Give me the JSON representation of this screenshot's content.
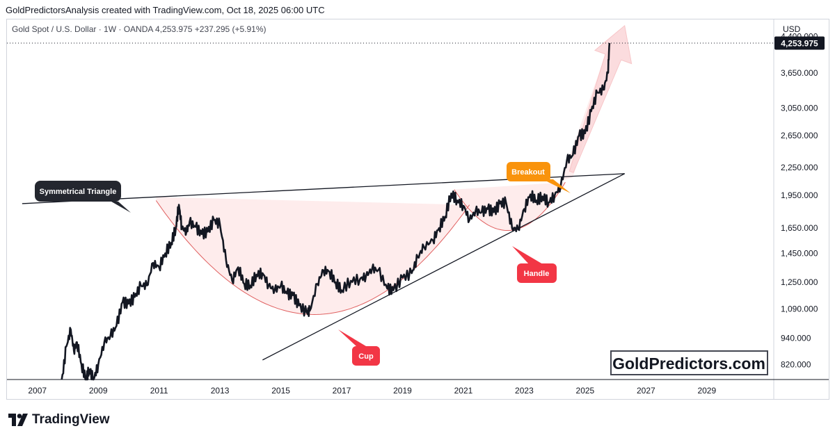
{
  "header": {
    "author_line": "GoldPredictorsAnalysis created with TradingView.com, Oct 18, 2025 06:00 UTC"
  },
  "footer": {
    "brand": "TradingView"
  },
  "colors": {
    "price_line": "#131722",
    "cup_curve": "#e06060",
    "fill_pink": "#fde5e5",
    "label_dark": "#24272f",
    "label_red": "#f23645",
    "label_orange": "#f9930c",
    "arrow_pink": "#fbd4d6"
  },
  "chart_data": {
    "type": "line",
    "title": "Gold Spot / U.S. Dollar · 1W · OANDA",
    "instrument_line": "Gold Spot / U.S. Dollar · 1W · OANDA  4,253.975  +237.295 (+5.91%)",
    "currency": "USD",
    "scale": "log",
    "last_price_label": "4,253.975",
    "x_ticks": [
      "2007",
      "2009",
      "2011",
      "2013",
      "2015",
      "2017",
      "2019",
      "2021",
      "2023",
      "2025",
      "2027",
      "2029"
    ],
    "y_ticks": [
      "4,400.000",
      "3,650.000",
      "3,050.000",
      "2,650.000",
      "2,250.000",
      "1,950.000",
      "1,650.000",
      "1,450.000",
      "1,250.000",
      "1,090.000",
      "940.000",
      "820.000"
    ],
    "xlim": [
      2006.0,
      2031.2
    ],
    "ylim": [
      760,
      4800
    ],
    "series": [
      {
        "name": "Gold Spot / U.S. Dollar (weekly)",
        "x": [
          2007.8,
          2007.95,
          2008.1,
          2008.2,
          2008.3,
          2008.45,
          2008.6,
          2008.7,
          2008.85,
          2009.0,
          2009.2,
          2009.4,
          2009.6,
          2009.8,
          2010.0,
          2010.2,
          2010.4,
          2010.6,
          2010.8,
          2011.0,
          2011.2,
          2011.4,
          2011.55,
          2011.65,
          2011.75,
          2011.9,
          2012.0,
          2012.2,
          2012.4,
          2012.6,
          2012.8,
          2013.0,
          2013.2,
          2013.4,
          2013.6,
          2013.8,
          2014.0,
          2014.2,
          2014.4,
          2014.6,
          2014.8,
          2015.0,
          2015.2,
          2015.4,
          2015.6,
          2015.85,
          2015.95,
          2016.2,
          2016.4,
          2016.6,
          2016.8,
          2017.0,
          2017.3,
          2017.6,
          2017.8,
          2018.0,
          2018.2,
          2018.5,
          2018.7,
          2019.0,
          2019.3,
          2019.5,
          2019.7,
          2020.0,
          2020.2,
          2020.4,
          2020.6,
          2020.8,
          2021.0,
          2021.2,
          2021.4,
          2021.6,
          2021.8,
          2022.0,
          2022.2,
          2022.4,
          2022.6,
          2022.8,
          2023.0,
          2023.2,
          2023.4,
          2023.6,
          2023.8,
          2024.0,
          2024.2,
          2024.4,
          2024.6,
          2024.8,
          2025.0,
          2025.2,
          2025.4,
          2025.6,
          2025.75,
          2025.8
        ],
        "y": [
          750,
          900,
          980,
          880,
          920,
          820,
          760,
          800,
          760,
          820,
          920,
          950,
          1000,
          1130,
          1120,
          1160,
          1230,
          1230,
          1380,
          1350,
          1450,
          1530,
          1650,
          1860,
          1650,
          1620,
          1700,
          1660,
          1600,
          1620,
          1720,
          1680,
          1400,
          1260,
          1350,
          1240,
          1230,
          1300,
          1310,
          1230,
          1200,
          1230,
          1180,
          1170,
          1110,
          1070,
          1080,
          1240,
          1330,
          1320,
          1250,
          1200,
          1260,
          1270,
          1290,
          1340,
          1330,
          1210,
          1200,
          1280,
          1310,
          1420,
          1500,
          1550,
          1650,
          1750,
          1970,
          1900,
          1850,
          1720,
          1800,
          1790,
          1820,
          1790,
          1870,
          1880,
          1650,
          1640,
          1820,
          1960,
          1900,
          1940,
          1880,
          1950,
          2050,
          2330,
          2400,
          2650,
          2680,
          3000,
          3300,
          3350,
          3650,
          4253.975
        ]
      }
    ],
    "annotations": [
      {
        "text": "Symmetrical Triangle",
        "type": "callout"
      },
      {
        "text": "Cup",
        "type": "callout"
      },
      {
        "text": "Handle",
        "type": "callout"
      },
      {
        "text": "Breakout",
        "type": "callout"
      }
    ],
    "trendlines": [
      {
        "name": "upper",
        "from": [
          2006.5,
          1870
        ],
        "to": [
          2026.3,
          2180
        ]
      },
      {
        "name": "lower",
        "from": [
          2014.4,
          840
        ],
        "to": [
          2026.3,
          2180
        ]
      }
    ],
    "watermark": "GoldPredictors.com"
  }
}
